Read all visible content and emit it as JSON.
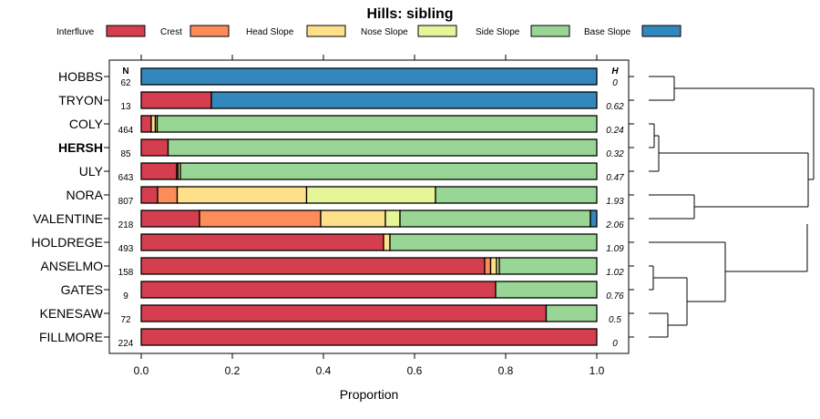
{
  "chart_data": {
    "type": "stacked-bar",
    "title": "Hills: sibling",
    "xlabel": "Proportion",
    "xlim": [
      0,
      1
    ],
    "xticks": [
      0.0,
      0.2,
      0.4,
      0.6,
      0.8,
      1.0
    ],
    "xtick_labels": [
      "0.0",
      "0.2",
      "0.4",
      "0.6",
      "0.8",
      "1.0"
    ],
    "n_header": "N",
    "h_header": "H",
    "legend": [
      {
        "name": "Interfluve",
        "color": "#d53e4f"
      },
      {
        "name": "Crest",
        "color": "#fc8d59"
      },
      {
        "name": "Head Slope",
        "color": "#fee08b"
      },
      {
        "name": "Nose Slope",
        "color": "#e6f598"
      },
      {
        "name": "Side Slope",
        "color": "#99d594"
      },
      {
        "name": "Base Slope",
        "color": "#3288bd"
      }
    ],
    "rows": [
      {
        "label": "HOBBS",
        "n": "62",
        "h": "0",
        "bold": false,
        "values": [
          0,
          0,
          0,
          0,
          0,
          1.0
        ]
      },
      {
        "label": "TRYON",
        "n": "13",
        "h": "0.62",
        "bold": false,
        "values": [
          0.154,
          0,
          0,
          0,
          0,
          0.846
        ]
      },
      {
        "label": "COLY",
        "n": "464",
        "h": "0.24",
        "bold": false,
        "values": [
          0.022,
          0,
          0.009,
          0.004,
          0.965,
          0
        ]
      },
      {
        "label": "HERSH",
        "n": "85",
        "h": "0.32",
        "bold": true,
        "values": [
          0.059,
          0,
          0,
          0,
          0.941,
          0
        ]
      },
      {
        "label": "ULY",
        "n": "643",
        "h": "0.47",
        "bold": false,
        "values": [
          0.078,
          0.003,
          0.005,
          0,
          0.914,
          0
        ]
      },
      {
        "label": "NORA",
        "n": "807",
        "h": "1.93",
        "bold": false,
        "values": [
          0.036,
          0.043,
          0.284,
          0.283,
          0.354,
          0
        ]
      },
      {
        "label": "VALENTINE",
        "n": "218",
        "h": "2.06",
        "bold": false,
        "values": [
          0.128,
          0.266,
          0.142,
          0.032,
          0.418,
          0.014
        ]
      },
      {
        "label": "HOLDREGE",
        "n": "493",
        "h": "1.09",
        "bold": false,
        "values": [
          0.532,
          0,
          0.014,
          0,
          0.454,
          0
        ]
      },
      {
        "label": "ANSELMO",
        "n": "158",
        "h": "1.02",
        "bold": false,
        "values": [
          0.754,
          0.013,
          0.013,
          0.006,
          0.214,
          0
        ]
      },
      {
        "label": "GATES",
        "n": "9",
        "h": "0.76",
        "bold": false,
        "values": [
          0.778,
          0,
          0,
          0,
          0.222,
          0
        ]
      },
      {
        "label": "KENESAW",
        "n": "72",
        "h": "0.5",
        "bold": false,
        "values": [
          0.889,
          0,
          0,
          0,
          0.111,
          0
        ]
      },
      {
        "label": "FILLMORE",
        "n": "224",
        "h": "0",
        "bold": false,
        "values": [
          1.0,
          0,
          0,
          0,
          0,
          0
        ]
      }
    ]
  }
}
